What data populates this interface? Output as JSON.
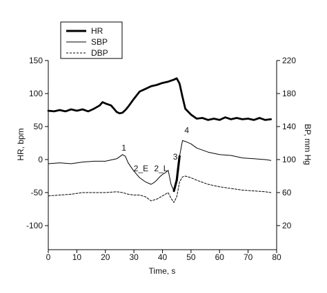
{
  "chart_data": {
    "type": "line",
    "xlabel": "Time, s",
    "ylabel_left": "HR, bpm",
    "ylabel_right": "BP, mm Hg",
    "xlim": [
      0,
      80
    ],
    "ylim_left": [
      -100,
      150
    ],
    "ylim_right": [
      20,
      220
    ],
    "xticks": [
      0,
      10,
      20,
      30,
      40,
      50,
      60,
      70,
      80
    ],
    "yticks_left": [
      -100,
      -50,
      0,
      50,
      100,
      150
    ],
    "yticks_right": [
      20,
      60,
      100,
      140,
      180,
      220
    ],
    "grid": false,
    "legend_position": "top-left",
    "series": [
      {
        "name": "HR",
        "axis": "left",
        "style": "thick-solid",
        "x": [
          0,
          2,
          4,
          6,
          8,
          10,
          12,
          14,
          16,
          18,
          19,
          20,
          22,
          24,
          25,
          26,
          27,
          28,
          30,
          32,
          34,
          36,
          38,
          40,
          42,
          44,
          45,
          46,
          47,
          48,
          50,
          52,
          54,
          56,
          58,
          60,
          62,
          64,
          66,
          68,
          70,
          72,
          74,
          76,
          78
        ],
        "y": [
          74,
          73,
          75,
          73,
          76,
          74,
          76,
          73,
          77,
          82,
          87,
          85,
          82,
          72,
          70,
          71,
          75,
          80,
          92,
          103,
          107,
          111,
          113,
          116,
          118,
          121,
          123,
          115,
          95,
          77,
          68,
          62,
          63,
          60,
          62,
          60,
          64,
          61,
          63,
          61,
          62,
          60,
          63,
          60,
          61
        ]
      },
      {
        "name": "SBP",
        "axis": "right",
        "style": "thin-solid",
        "x": [
          0,
          4,
          8,
          12,
          16,
          20,
          24,
          26,
          27,
          28,
          30,
          32,
          34,
          36,
          37,
          38,
          39,
          40,
          41,
          42,
          43,
          44,
          45,
          46,
          47,
          48,
          50,
          52,
          56,
          60,
          64,
          68,
          72,
          76,
          78
        ],
        "y": [
          95,
          96,
          95,
          97,
          98,
          98,
          101,
          106,
          104,
          96,
          86,
          78,
          73,
          70,
          72,
          75,
          79,
          82,
          84,
          87,
          70,
          62,
          75,
          104,
          123,
          122,
          119,
          114,
          109,
          106,
          105,
          102,
          101,
          100,
          99
        ]
      },
      {
        "name": "DBP",
        "axis": "right",
        "style": "dashed",
        "x": [
          0,
          4,
          8,
          12,
          16,
          20,
          24,
          26,
          28,
          30,
          32,
          34,
          36,
          38,
          40,
          42,
          43,
          44,
          45,
          46,
          47,
          48,
          50,
          52,
          56,
          60,
          64,
          68,
          72,
          76,
          78
        ],
        "y": [
          56,
          57,
          58,
          60,
          60,
          60,
          61,
          60,
          58,
          57,
          57,
          55,
          50,
          52,
          56,
          60,
          53,
          48,
          55,
          73,
          79,
          80,
          78,
          75,
          70,
          67,
          65,
          63,
          62,
          61,
          60
        ]
      }
    ],
    "annotations": [
      {
        "text": "1",
        "x": 26.5,
        "y": 111
      },
      {
        "text": "2_E",
        "x": 32.5,
        "y": 86
      },
      {
        "text": "2_L",
        "x": 39.5,
        "y": 86
      },
      {
        "text": "3",
        "x": 44.5,
        "y": 100
      },
      {
        "text": "4",
        "x": 48.5,
        "y": 132
      }
    ]
  }
}
